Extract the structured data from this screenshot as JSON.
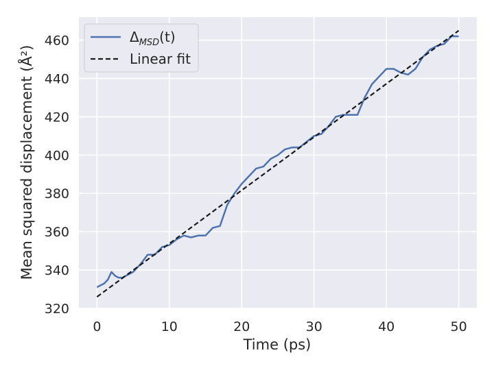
{
  "chart_data": {
    "type": "line",
    "xlabel": "Time (ps)",
    "ylabel": "Mean squared displacement (Å²)",
    "xlim": [
      -2.5,
      52.5
    ],
    "ylim": [
      320,
      472
    ],
    "xticks": [
      0,
      10,
      20,
      30,
      40,
      50
    ],
    "yticks": [
      320,
      340,
      360,
      380,
      400,
      420,
      440,
      460
    ],
    "grid": true,
    "legend_position": "top-left",
    "series": [
      {
        "name": "Δ_MSD(t)",
        "style": "solid",
        "color": "#4c72b0",
        "x": [
          0,
          0.5,
          1,
          1.5,
          2,
          2.5,
          3,
          3.5,
          4,
          5,
          6,
          7,
          8,
          9,
          10,
          11,
          12,
          13,
          14,
          15,
          16,
          17,
          18,
          19,
          20,
          21,
          22,
          23,
          24,
          25,
          26,
          27,
          28,
          29,
          30,
          31,
          32,
          33,
          34,
          35,
          36,
          37,
          38,
          39,
          40,
          41,
          42,
          43,
          44,
          45,
          46,
          47,
          48,
          49,
          50
        ],
        "y": [
          331,
          332,
          333,
          335,
          339,
          337,
          336,
          336,
          337,
          339,
          343,
          348,
          348,
          352,
          353,
          356,
          358,
          357,
          358,
          358,
          362,
          363,
          374,
          380,
          385,
          389,
          393,
          394,
          398,
          400,
          403,
          404,
          404,
          407,
          410,
          411,
          415,
          420,
          421,
          421,
          421,
          430,
          437,
          441,
          445,
          445,
          443,
          442,
          445,
          451,
          455,
          457,
          458,
          462,
          462
        ]
      },
      {
        "name": "Linear fit",
        "style": "dashed",
        "color": "#1a1a1a",
        "x": [
          0,
          50
        ],
        "y": [
          326,
          465
        ]
      }
    ]
  },
  "legend": {
    "item1_symbol": "Δ",
    "item1_sub": "MSD",
    "item1_tail": "(t)",
    "item2": "Linear fit"
  },
  "colors": {
    "plot_bg": "#eaeaf2",
    "grid": "#ffffff",
    "series1": "#4c72b0",
    "fit": "#1a1a1a"
  }
}
